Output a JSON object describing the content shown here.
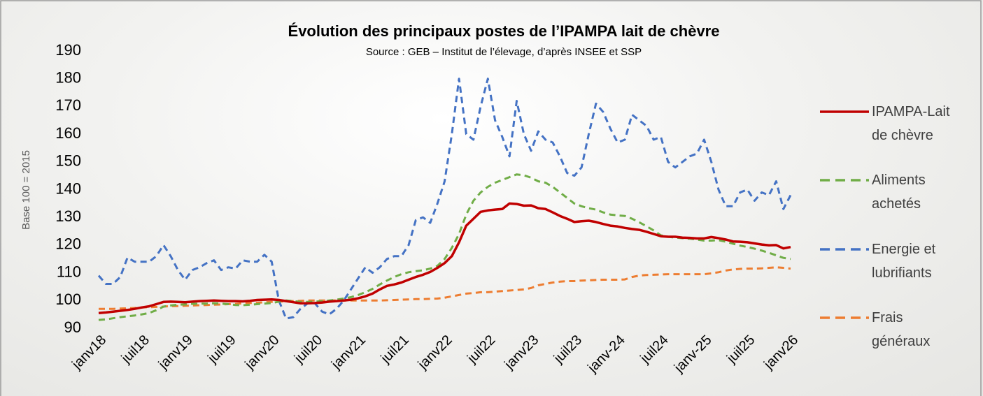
{
  "chart_data": {
    "type": "line",
    "title": "Évolution des principaux postes de l’IPAMPA lait de chèvre",
    "subtitle": "Source : GEB – Institut de l’élevage, d’après INSEE et SSP",
    "y_label": "Base 100 = 2015",
    "categories": [
      "janv18",
      null,
      null,
      null,
      null,
      null,
      "juil18",
      null,
      null,
      null,
      null,
      null,
      "janv19",
      null,
      null,
      null,
      null,
      null,
      "juil19",
      null,
      null,
      null,
      null,
      null,
      "janv20",
      null,
      null,
      null,
      null,
      null,
      "juil20",
      null,
      null,
      null,
      null,
      null,
      "janv21",
      null,
      null,
      null,
      null,
      null,
      "juil21",
      null,
      null,
      null,
      null,
      null,
      "janv22",
      null,
      null,
      null,
      null,
      null,
      "juil22",
      null,
      null,
      null,
      null,
      null,
      "janv23",
      null,
      null,
      null,
      null,
      null,
      "juil23",
      null,
      null,
      null,
      null,
      null,
      "janv-24",
      null,
      null,
      null,
      null,
      null,
      "juil24",
      null,
      null,
      null,
      null,
      null,
      "janv-25",
      null,
      null,
      null,
      null,
      null,
      "juil25",
      null,
      null,
      null,
      null,
      null,
      "janv26"
    ],
    "ylim": [
      90,
      190
    ],
    "yticks": [
      90,
      100,
      110,
      120,
      130,
      140,
      150,
      160,
      170,
      180,
      190
    ],
    "grid": false,
    "legend": "right",
    "series": [
      {
        "name": "IPAMPA-Lait de chèvre",
        "color": "#c00000",
        "dashed": false,
        "values": [
          95.5,
          95.7,
          96,
          96.3,
          96.6,
          97,
          97.5,
          97.9,
          98.7,
          99.5,
          99.6,
          99.5,
          99.4,
          99.6,
          99.8,
          99.9,
          100,
          99.9,
          99.8,
          99.8,
          99.7,
          99.9,
          100.2,
          100.3,
          100.4,
          100.2,
          99.8,
          99.4,
          99,
          99,
          99.1,
          99.3,
          99.6,
          99.8,
          100,
          100.3,
          100.8,
          101.5,
          102.5,
          104,
          105.3,
          105.8,
          106.5,
          107.5,
          108.5,
          109.3,
          110.3,
          111.8,
          113.5,
          116,
          121,
          127,
          129.5,
          132,
          132.5,
          132.8,
          133,
          135,
          134.8,
          134.2,
          134.3,
          133.3,
          133,
          131.8,
          130.5,
          129.5,
          128.3,
          128.6,
          128.8,
          128.3,
          127.6,
          127,
          126.7,
          126.2,
          125.8,
          125.5,
          124.8,
          124,
          123.2,
          123,
          123,
          122.7,
          122.6,
          122.4,
          122.4,
          122.9,
          122.5,
          122,
          121.3,
          121.2,
          121,
          120.6,
          120.2,
          119.9,
          120,
          118.8,
          119.3
        ]
      },
      {
        "name": "Aliments achetés",
        "color": "#70ad47",
        "dashed": true,
        "values": [
          93,
          93.2,
          93.6,
          94,
          94.3,
          94.6,
          95,
          95.5,
          96.5,
          97.8,
          98.2,
          98.5,
          98.6,
          98.8,
          98.9,
          98.9,
          99,
          98.9,
          98.7,
          98.4,
          98.3,
          98.5,
          98.7,
          98.9,
          99.1,
          99.6,
          100,
          99.8,
          99.5,
          99.5,
          99.6,
          99.8,
          100,
          100.3,
          100.7,
          101.2,
          102,
          103,
          104.2,
          105.8,
          107.2,
          108.5,
          109.5,
          110.2,
          110.6,
          110.9,
          111.5,
          112.5,
          115,
          119,
          124,
          131,
          136,
          139,
          141,
          142.5,
          143.5,
          144.5,
          145.5,
          145.2,
          144.3,
          143,
          142.5,
          141,
          139,
          137,
          135,
          134,
          133.3,
          132.8,
          131.8,
          131,
          130.7,
          130.5,
          129.5,
          128.2,
          126.8,
          125.3,
          123.5,
          123,
          122.7,
          122.5,
          122.3,
          122,
          121.6,
          121.6,
          121.8,
          121.2,
          120.5,
          119.8,
          119.3,
          118.7,
          118,
          117.2,
          116.3,
          115.4,
          115
        ]
      },
      {
        "name": "Energie et lubrifiants",
        "color": "#4472c4",
        "dashed": true,
        "values": [
          109,
          106,
          106,
          108.5,
          115.5,
          114,
          114,
          114,
          116,
          120,
          116,
          111,
          107.5,
          111,
          112,
          113.5,
          114.5,
          111,
          112,
          111.5,
          114.5,
          114,
          114,
          116.5,
          114,
          100,
          93.5,
          94,
          97,
          99,
          99,
          96,
          95,
          97,
          100,
          104,
          108,
          112,
          110,
          112,
          115,
          116,
          116,
          120,
          129,
          130,
          128,
          135,
          143,
          160,
          180,
          160,
          158,
          170,
          180,
          165,
          159,
          152,
          172,
          160,
          154,
          161,
          158,
          157,
          152,
          146,
          145,
          148,
          160,
          171,
          168,
          162,
          157,
          158,
          167,
          165,
          163,
          158,
          159,
          150,
          148,
          150,
          152,
          153,
          158,
          150,
          140,
          134,
          134,
          139,
          140,
          136,
          139,
          138,
          143,
          133,
          138
        ]
      },
      {
        "name": "Frais généraux",
        "color": "#ed7d31",
        "dashed": true,
        "values": [
          97,
          97,
          97,
          97.1,
          97.2,
          97.3,
          97.5,
          97.6,
          97.7,
          97.8,
          98,
          98,
          98.1,
          98.2,
          98.3,
          98.4,
          98.5,
          98.6,
          98.7,
          98.8,
          99,
          99.1,
          99.2,
          99.4,
          99.5,
          99.6,
          99.7,
          99.8,
          99.9,
          100,
          100,
          100,
          100,
          100,
          100,
          100,
          100,
          100,
          100,
          100,
          100.1,
          100.2,
          100.3,
          100.4,
          100.5,
          100.5,
          100.6,
          100.7,
          101,
          101.5,
          102,
          102.5,
          102.7,
          103,
          103,
          103.2,
          103.4,
          103.6,
          103.8,
          104,
          104.5,
          105.5,
          106,
          106.5,
          106.8,
          107,
          107,
          107.2,
          107.3,
          107.4,
          107.5,
          107.5,
          107.5,
          107.6,
          108.5,
          109,
          109.2,
          109.3,
          109.4,
          109.5,
          109.5,
          109.5,
          109.5,
          109.5,
          109.5,
          109.8,
          110.2,
          110.8,
          111.2,
          111.4,
          111.5,
          111.5,
          111.6,
          111.8,
          112,
          111.8,
          111.5
        ]
      }
    ]
  }
}
